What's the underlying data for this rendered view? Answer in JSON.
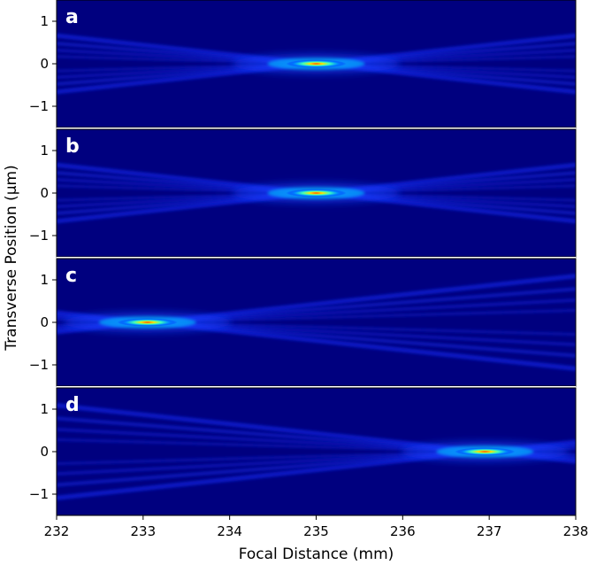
{
  "chart_data": {
    "type": "heatmap",
    "xlabel": "Focal Distance (mm)",
    "ylabel": "Transverse Position (μm)",
    "xlim": [
      232,
      238
    ],
    "ylim": [
      -1.5,
      1.5
    ],
    "x_ticks": [
      232,
      233,
      234,
      235,
      236,
      237,
      238
    ],
    "y_ticks": [
      1,
      0,
      -1
    ],
    "y_tick_labels": [
      "1",
      "0",
      "−1"
    ],
    "colormap": "jet",
    "background_color": "#00007f",
    "panels": [
      {
        "label": "a",
        "focus_x": 235.0,
        "focus_y": 0,
        "beam_slope": 0.22
      },
      {
        "label": "b",
        "focus_x": 235.0,
        "focus_y": 0,
        "beam_slope": 0.22
      },
      {
        "label": "c",
        "focus_x": 233.05,
        "focus_y": 0,
        "beam_slope": 0.22
      },
      {
        "label": "d",
        "focus_x": 236.95,
        "focus_y": 0,
        "beam_slope": 0.22
      }
    ]
  }
}
